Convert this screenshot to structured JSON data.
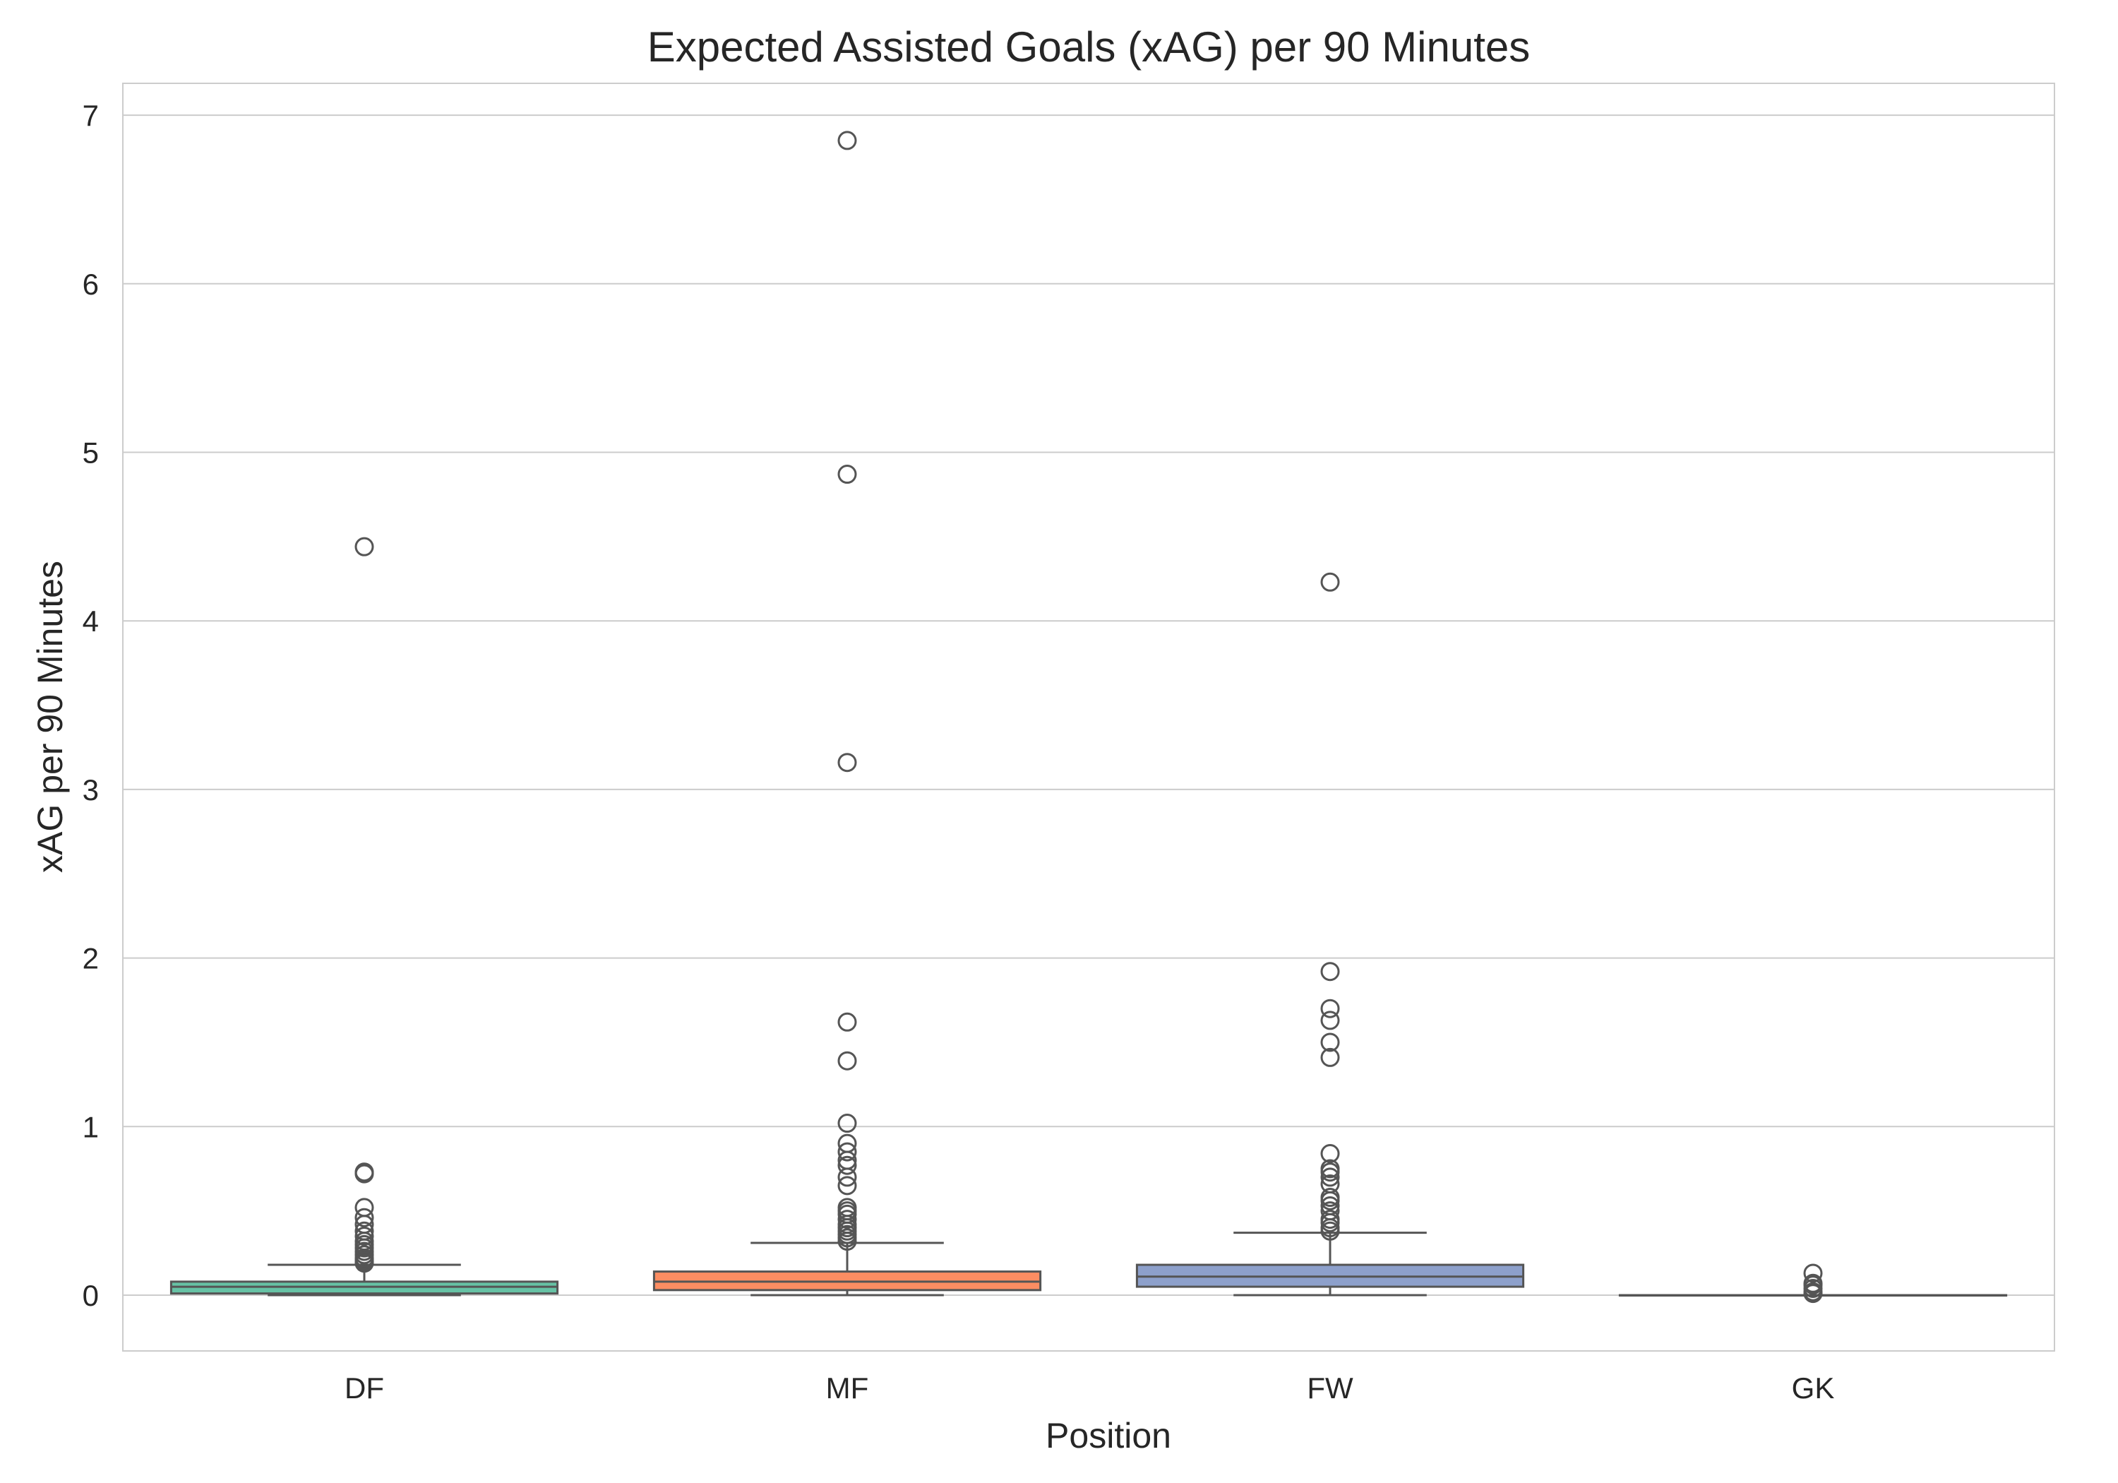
{
  "chart_data": {
    "type": "box",
    "title": "Expected Assisted Goals (xAG) per 90 Minutes",
    "xlabel": "Position",
    "ylabel": "xAG per 90 Minutes",
    "ylim": [
      -0.33,
      7.2
    ],
    "yticks": [
      0,
      1,
      2,
      3,
      4,
      5,
      6,
      7
    ],
    "grid": true,
    "categories": [
      "DF",
      "MF",
      "FW",
      "GK"
    ],
    "colors": [
      "#66c2a5",
      "#fc8d62",
      "#8da0cb",
      "#e78ac3"
    ],
    "boxes": [
      {
        "name": "DF",
        "whisker_low": 0.0,
        "q1": 0.01,
        "median": 0.05,
        "q3": 0.08,
        "whisker_high": 0.18,
        "outliers": [
          0.19,
          0.2,
          0.21,
          0.22,
          0.24,
          0.26,
          0.28,
          0.3,
          0.32,
          0.35,
          0.38,
          0.42,
          0.46,
          0.52,
          0.72,
          0.73,
          4.44
        ]
      },
      {
        "name": "MF",
        "whisker_low": 0.0,
        "q1": 0.03,
        "median": 0.08,
        "q3": 0.14,
        "whisker_high": 0.31,
        "outliers": [
          0.32,
          0.34,
          0.36,
          0.38,
          0.4,
          0.42,
          0.45,
          0.48,
          0.5,
          0.52,
          0.65,
          0.7,
          0.77,
          0.8,
          0.85,
          0.9,
          1.02,
          1.39,
          1.62,
          3.16,
          4.87,
          6.85
        ]
      },
      {
        "name": "FW",
        "whisker_low": 0.0,
        "q1": 0.05,
        "median": 0.11,
        "q3": 0.18,
        "whisker_high": 0.37,
        "outliers": [
          0.38,
          0.4,
          0.43,
          0.45,
          0.5,
          0.53,
          0.56,
          0.58,
          0.66,
          0.7,
          0.73,
          0.75,
          0.84,
          1.41,
          1.5,
          1.63,
          1.7,
          1.92,
          4.23
        ]
      },
      {
        "name": "GK",
        "whisker_low": 0.0,
        "q1": 0.0,
        "median": 0.0,
        "q3": 0.0,
        "whisker_high": 0.0,
        "outliers": [
          0.01,
          0.02,
          0.04,
          0.06,
          0.07,
          0.13
        ]
      }
    ]
  }
}
